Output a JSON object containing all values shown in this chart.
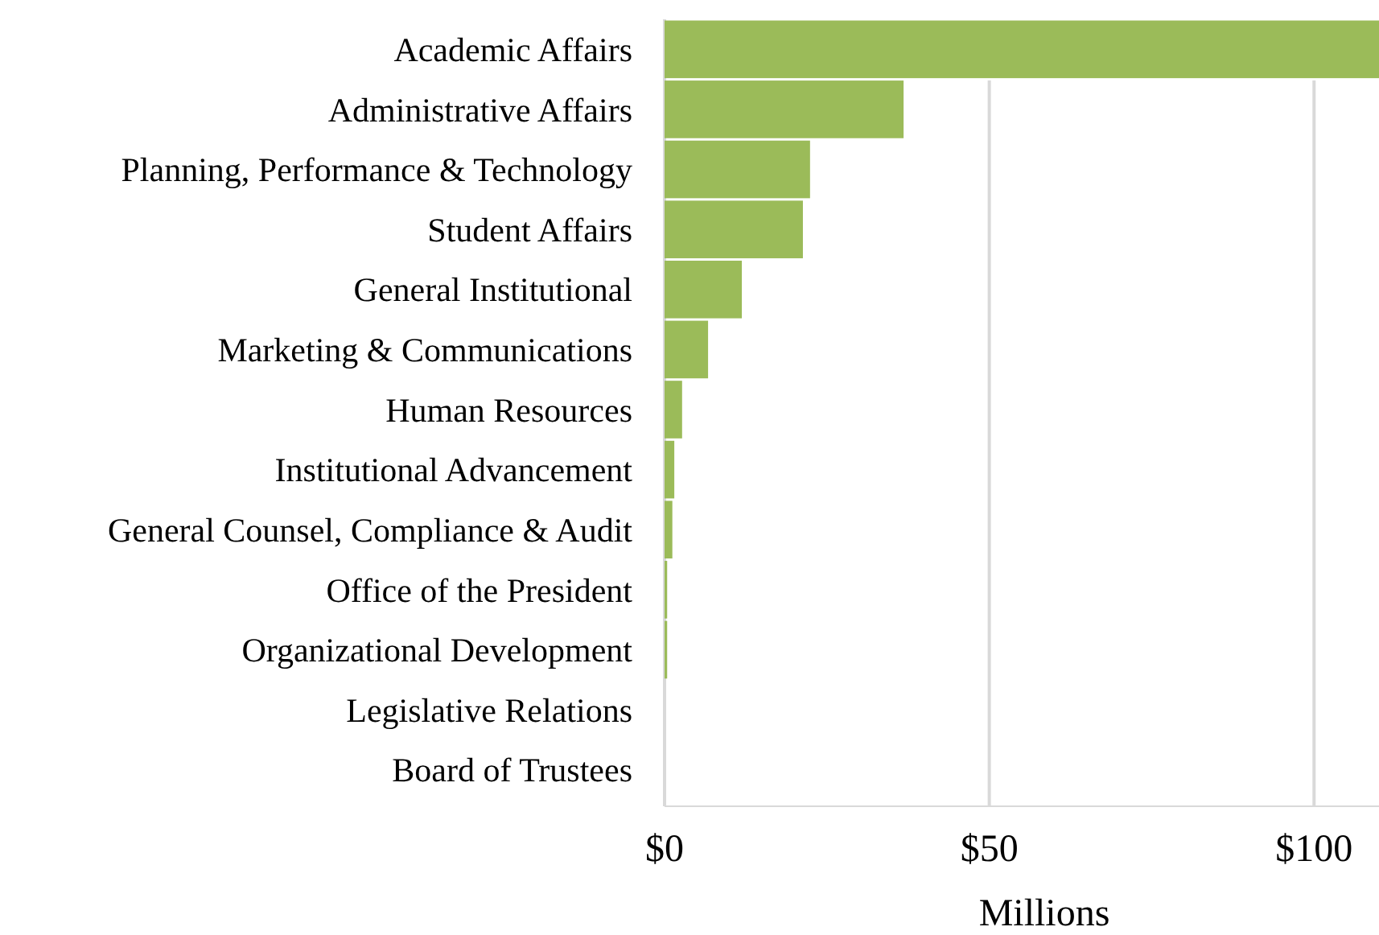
{
  "chart_data": {
    "type": "bar",
    "orientation": "horizontal",
    "xlabel": "Millions",
    "categories": [
      "Academic Affairs",
      "Administrative Affairs",
      "Planning, Performance & Technology",
      "Student Affairs",
      "General Institutional",
      "Marketing & Communications",
      "Human Resources",
      "Institutional Advancement",
      "General Counsel, Compliance & Audit",
      "Office of the President",
      "Organizational Development",
      "Legislative Relations",
      "Board of Trustees"
    ],
    "values": [
      110,
      36.8,
      22.4,
      21.3,
      11.9,
      6.7,
      2.7,
      1.5,
      1.2,
      0.4,
      0.4,
      0,
      0
    ],
    "color": "#9bbb59",
    "xlim": [
      0,
      110
    ],
    "xticks": [
      {
        "value": 0,
        "label": "$0"
      },
      {
        "value": 50,
        "label": "$50"
      },
      {
        "value": 100,
        "label": "$100"
      }
    ],
    "grid": "x"
  }
}
